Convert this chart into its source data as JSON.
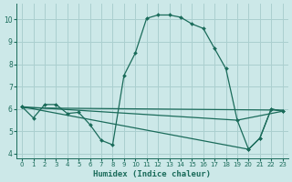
{
  "xlabel": "Humidex (Indice chaleur)",
  "bg_color": "#cce8e8",
  "grid_color": "#aacfcf",
  "line_color": "#1a6b5a",
  "xlim": [
    -0.5,
    23.5
  ],
  "ylim": [
    3.8,
    10.7
  ],
  "xticks": [
    0,
    1,
    2,
    3,
    4,
    5,
    6,
    7,
    8,
    9,
    10,
    11,
    12,
    13,
    14,
    15,
    16,
    17,
    18,
    19,
    20,
    21,
    22,
    23
  ],
  "yticks": [
    4,
    5,
    6,
    7,
    8,
    9,
    10
  ],
  "lines": [
    {
      "x": [
        0,
        1,
        2,
        3,
        4,
        5,
        6,
        7,
        8,
        9,
        10,
        11,
        12,
        13,
        14,
        15,
        16,
        17,
        18,
        19,
        20,
        21,
        22,
        23
      ],
      "y": [
        6.1,
        5.6,
        6.2,
        6.2,
        5.8,
        5.85,
        5.3,
        4.6,
        4.4,
        7.5,
        8.5,
        10.05,
        10.2,
        10.2,
        10.1,
        9.8,
        9.6,
        8.7,
        7.8,
        5.5,
        4.2,
        4.7,
        6.0,
        5.9
      ],
      "marker": true
    },
    {
      "x": [
        0,
        23
      ],
      "y": [
        6.05,
        5.95
      ],
      "marker": false
    },
    {
      "x": [
        0,
        19,
        23
      ],
      "y": [
        6.1,
        5.5,
        5.9
      ],
      "marker": false
    },
    {
      "x": [
        0,
        20,
        21,
        22,
        23
      ],
      "y": [
        6.1,
        4.2,
        4.7,
        6.0,
        5.9
      ],
      "marker": true
    }
  ]
}
